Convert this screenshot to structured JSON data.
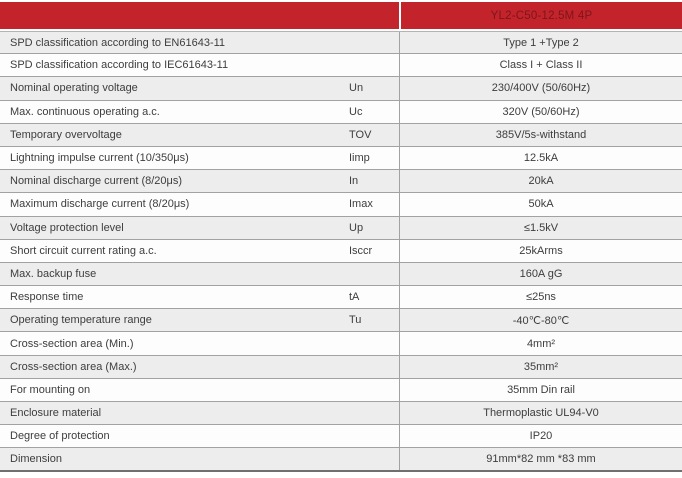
{
  "header": {
    "product_model": "YL2-C50-12.5M 4P"
  },
  "colors": {
    "header_bg": "#c3232b",
    "header_text": "#7c161b",
    "row_alt_bg": "#ededed",
    "row_bg": "#fdfdfd",
    "border": "#a2a2a2",
    "text": "#3d3d3d"
  },
  "table": {
    "rows": [
      {
        "label": "SPD classification according to EN61643-11",
        "symbol": "",
        "value": "Type 1 +Type 2"
      },
      {
        "label": "SPD classification according to IEC61643-11",
        "symbol": "",
        "value": "Class I + Class II"
      },
      {
        "label": "Nominal operating voltage",
        "symbol": "Un",
        "value": "230/400V (50/60Hz)"
      },
      {
        "label": "Max. continuous operating a.c.",
        "symbol": "Uc",
        "value": "320V (50/60Hz)"
      },
      {
        "label": "Temporary overvoltage",
        "symbol": "TOV",
        "value": "385V/5s-withstand"
      },
      {
        "label": "Lightning impulse current (10/350μs)",
        "symbol": "Iimp",
        "value": "12.5kA"
      },
      {
        "label": "Nominal discharge current (8/20μs)",
        "symbol": "In",
        "value": "20kA"
      },
      {
        "label": "Maximum discharge current (8/20μs)",
        "symbol": "Imax",
        "value": "50kA"
      },
      {
        "label": "Voltage protection level",
        "symbol": "Up",
        "value": "≤1.5kV"
      },
      {
        "label": "Short circuit current rating a.c.",
        "symbol": "Isccr",
        "value": "25kArms"
      },
      {
        "label": "Max. backup fuse",
        "symbol": "",
        "value": "160A gG"
      },
      {
        "label": "Response time",
        "symbol": "tA",
        "value": "≤25ns"
      },
      {
        "label": "Operating temperature range",
        "symbol": "Tu",
        "value": "-40℃-80℃"
      },
      {
        "label": "Cross-section area (Min.)",
        "symbol": "",
        "value": "4mm²"
      },
      {
        "label": "Cross-section area (Max.)",
        "symbol": "",
        "value": "35mm²"
      },
      {
        "label": "For mounting on",
        "symbol": "",
        "value": "35mm Din rail"
      },
      {
        "label": "Enclosure material",
        "symbol": "",
        "value": "Thermoplastic UL94-V0"
      },
      {
        "label": "Degree of protection",
        "symbol": "",
        "value": "IP20"
      },
      {
        "label": "Dimension",
        "symbol": "",
        "value": "91mm*82 mm *83 mm"
      }
    ]
  }
}
